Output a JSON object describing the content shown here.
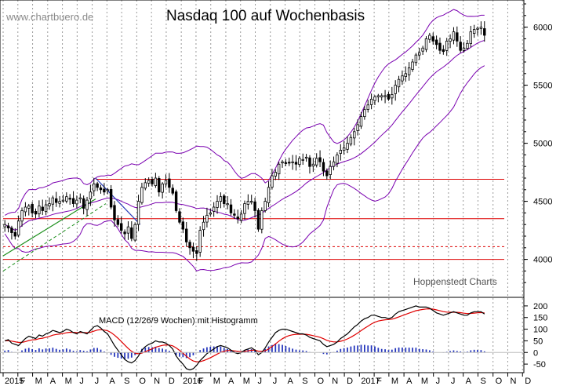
{
  "watermark": "www.chartbuero.de",
  "credit": "Hoppenstedt Charts",
  "colors": {
    "candle": "#000000",
    "bands": "#7a00b0",
    "support": "#dd0000",
    "trend": "#1b8f1b",
    "downtrend": "#2a3cb8",
    "macd_line": "#000000",
    "signal_line": "#e00000",
    "histogram": "#2233bb",
    "grid": "#9a9a9a"
  },
  "chart_data": [
    {
      "type": "candlestick",
      "title": "Nasdaq 100 auf Wochenbasis",
      "ylim": [
        3700,
        6200
      ],
      "yticks": [
        4000,
        4500,
        5000,
        5500,
        6000
      ],
      "x_range_weeks": [
        0,
        148
      ],
      "month_ticks": [
        {
          "label": "2015",
          "week": 0
        },
        {
          "label": "F",
          "week": 4.3
        },
        {
          "label": "M",
          "week": 8.6
        },
        {
          "label": "A",
          "week": 13
        },
        {
          "label": "M",
          "week": 17.3
        },
        {
          "label": "J",
          "week": 21.6
        },
        {
          "label": "J",
          "week": 26
        },
        {
          "label": "A",
          "week": 30.3
        },
        {
          "label": "S",
          "week": 34.6
        },
        {
          "label": "O",
          "week": 39
        },
        {
          "label": "N",
          "week": 43.3
        },
        {
          "label": "D",
          "week": 47.6
        },
        {
          "label": "2016",
          "week": 52
        },
        {
          "label": "F",
          "week": 56.3
        },
        {
          "label": "M",
          "week": 60.6
        },
        {
          "label": "A",
          "week": 65
        },
        {
          "label": "M",
          "week": 69.3
        },
        {
          "label": "J",
          "week": 73.6
        },
        {
          "label": "J",
          "week": 78
        },
        {
          "label": "A",
          "week": 82.3
        },
        {
          "label": "S",
          "week": 86.6
        },
        {
          "label": "O",
          "week": 91
        },
        {
          "label": "N",
          "week": 95.3
        },
        {
          "label": "D",
          "week": 99.6
        },
        {
          "label": "2017",
          "week": 104
        },
        {
          "label": "F",
          "week": 108.3
        },
        {
          "label": "M",
          "week": 112.6
        },
        {
          "label": "A",
          "week": 117
        },
        {
          "label": "M",
          "week": 121.3
        },
        {
          "label": "J",
          "week": 125.6
        },
        {
          "label": "J",
          "week": 130
        },
        {
          "label": "A",
          "week": 134.3
        },
        {
          "label": "S",
          "week": 138.6
        },
        {
          "label": "O",
          "week": 143
        },
        {
          "label": "N",
          "week": 147.3
        },
        {
          "label": "D",
          "week": 151.6
        }
      ],
      "candles_close": [
        4300,
        4270,
        4230,
        4200,
        4330,
        4420,
        4450,
        4460,
        4400,
        4390,
        4460,
        4420,
        4470,
        4480,
        4530,
        4490,
        4500,
        4510,
        4540,
        4520,
        4480,
        4510,
        4530,
        4440,
        4510,
        4580,
        4650,
        4620,
        4600,
        4580,
        4600,
        4450,
        4340,
        4300,
        4250,
        4220,
        4280,
        4180,
        4300,
        4500,
        4620,
        4660,
        4680,
        4650,
        4700,
        4580,
        4650,
        4680,
        4620,
        4570,
        4420,
        4320,
        4260,
        4150,
        4100,
        4070,
        4050,
        4250,
        4320,
        4380,
        4400,
        4450,
        4500,
        4540,
        4480,
        4480,
        4400,
        4380,
        4350,
        4390,
        4480,
        4500,
        4500,
        4420,
        4260,
        4420,
        4500,
        4620,
        4720,
        4750,
        4820,
        4840,
        4830,
        4830,
        4840,
        4820,
        4870,
        4860,
        4880,
        4800,
        4820,
        4870,
        4840,
        4760,
        4720,
        4800,
        4840,
        4900,
        4940,
        4960,
        5000,
        5050,
        5100,
        5160,
        5230,
        5290,
        5330,
        5380,
        5400,
        5410,
        5410,
        5410,
        5380,
        5420,
        5500,
        5550,
        5580,
        5600,
        5650,
        5700,
        5760,
        5780,
        5820,
        5900,
        5930,
        5880,
        5850,
        5800,
        5790,
        5880,
        5900,
        5960,
        5880,
        5800,
        5820,
        5860,
        5960,
        5980,
        5990,
        6000,
        5930
      ],
      "macd_close": [
        50,
        55,
        40,
        35,
        30,
        45,
        60,
        70,
        65,
        60,
        75,
        70,
        80,
        85,
        95,
        90,
        85,
        90,
        100,
        95,
        85,
        80,
        90,
        85,
        80,
        95,
        110,
        115,
        105,
        90,
        80,
        55,
        30,
        10,
        -10,
        -30,
        -40,
        -45,
        -35,
        -15,
        10,
        25,
        35,
        40,
        50,
        45,
        45,
        40,
        30,
        15,
        -15,
        -35,
        -50,
        -70,
        -75,
        -70,
        -55,
        -35,
        -20,
        -5,
        5,
        15,
        25,
        30,
        25,
        20,
        10,
        0,
        -5,
        0,
        10,
        15,
        20,
        10,
        -10,
        0,
        20,
        45,
        65,
        85,
        95,
        100,
        100,
        95,
        90,
        85,
        80,
        80,
        75,
        65,
        60,
        55,
        50,
        35,
        25,
        30,
        35,
        45,
        60,
        70,
        80,
        95,
        110,
        120,
        135,
        145,
        150,
        160,
        160,
        155,
        150,
        150,
        145,
        150,
        165,
        175,
        180,
        185,
        190,
        195,
        200,
        195,
        195,
        195,
        190,
        180,
        170,
        165,
        160,
        165,
        170,
        175,
        170,
        165,
        160,
        160,
        170,
        175,
        175,
        175,
        165
      ],
      "resistance_levels": [
        4690,
        4350,
        4110,
        4000
      ],
      "resistance_dashed": [
        false,
        false,
        true,
        false
      ]
    },
    {
      "type": "line",
      "title": "MACD (12/26/9 Wochen) mit Histogramm",
      "ylim": [
        -80,
        230
      ],
      "yticks": [
        200,
        150,
        100,
        50,
        0,
        -50
      ],
      "series": [
        "MACD",
        "Signal",
        "Histogramm"
      ]
    }
  ]
}
